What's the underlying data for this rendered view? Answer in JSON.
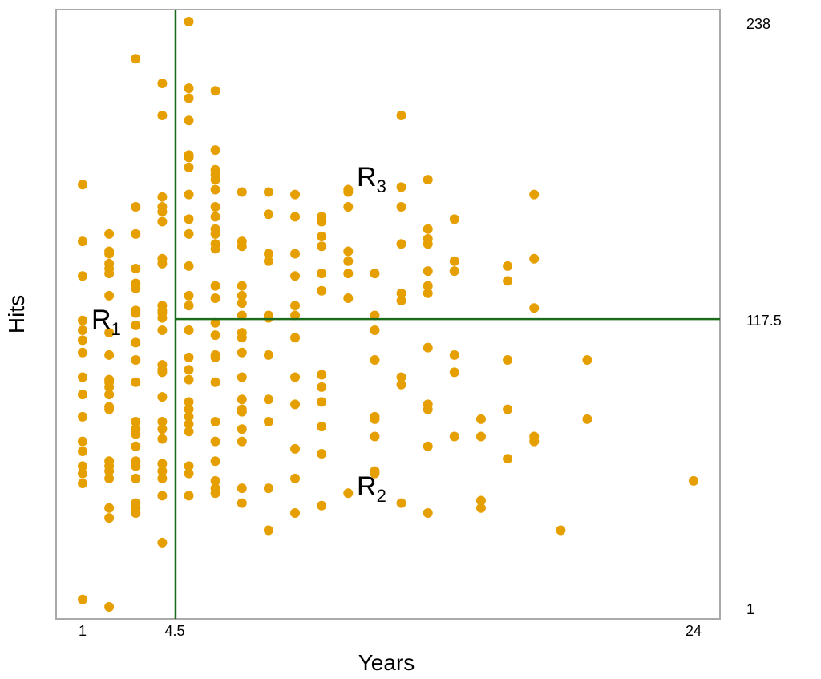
{
  "chart_data": {
    "type": "scatter",
    "xlabel": "Years",
    "ylabel": "Hits",
    "xlim": [
      1,
      24
    ],
    "ylim": [
      1,
      238
    ],
    "x_ticks": [
      "1",
      "4.5",
      "24"
    ],
    "y_ticks": [
      "238",
      "117.5",
      "1"
    ],
    "grid": false,
    "legend": "none",
    "point_color": "#E69F00",
    "split_line_color": "#1A6B1A",
    "splits": {
      "years": 4.5,
      "hits": 117.5
    },
    "regions": [
      {
        "label": "R",
        "sub": "1"
      },
      {
        "label": "R",
        "sub": "2"
      },
      {
        "label": "R",
        "sub": "3"
      }
    ],
    "points_by_year": [
      {
        "years": 1,
        "hits": [
          172,
          149,
          135,
          117,
          113,
          109,
          104,
          94,
          87,
          78,
          68,
          64,
          58,
          55,
          51,
          4
        ]
      },
      {
        "years": 2,
        "hits": [
          152,
          145,
          144,
          140,
          138,
          136,
          127,
          112,
          103,
          93,
          92,
          90,
          87,
          82,
          81,
          60,
          58,
          56,
          53,
          41,
          37,
          1
        ]
      },
      {
        "years": 3,
        "hits": [
          223,
          163,
          152,
          138,
          132,
          130,
          121,
          120,
          115,
          108,
          101,
          92,
          76,
          73,
          71,
          66,
          60,
          58,
          53,
          43,
          41,
          39
        ]
      },
      {
        "years": 4,
        "hits": [
          213,
          200,
          167,
          163,
          161,
          157,
          142,
          140,
          123,
          121,
          120,
          118,
          113,
          99,
          97,
          96,
          86,
          76,
          73,
          69,
          59,
          56,
          53,
          46,
          27
        ]
      },
      {
        "years": 5,
        "hits": [
          238,
          211,
          207,
          198,
          184,
          183,
          179,
          168,
          158,
          152,
          139,
          127,
          123,
          113,
          102,
          97,
          93,
          84,
          81,
          78,
          75,
          72,
          58,
          55,
          46
        ]
      },
      {
        "years": 6,
        "hits": [
          210,
          186,
          178,
          176,
          174,
          170,
          163,
          159,
          154,
          152,
          148,
          146,
          131,
          126,
          116,
          111,
          103,
          102,
          92,
          76,
          68,
          60,
          52,
          49,
          47
        ]
      },
      {
        "years": 7,
        "hits": [
          169,
          149,
          147,
          131,
          127,
          124,
          119,
          112,
          110,
          104,
          94,
          85,
          81,
          80,
          73,
          68,
          49,
          43
        ]
      },
      {
        "years": 8,
        "hits": [
          169,
          160,
          144,
          141,
          119,
          118,
          103,
          85,
          76,
          49,
          32
        ]
      },
      {
        "years": 9,
        "hits": [
          168,
          159,
          144,
          135,
          123,
          119,
          110,
          94,
          83,
          65,
          53,
          39
        ]
      },
      {
        "years": 10,
        "hits": [
          159,
          157,
          151,
          147,
          136,
          129,
          95,
          90,
          84,
          74,
          63,
          42
        ]
      },
      {
        "years": 11,
        "hits": [
          170,
          169,
          163,
          145,
          141,
          136,
          126,
          47
        ]
      },
      {
        "years": 12,
        "hits": [
          136,
          119,
          113,
          101,
          78,
          77,
          70,
          56,
          55
        ]
      },
      {
        "years": 13,
        "hits": [
          200,
          171,
          163,
          148,
          128,
          125,
          94,
          91,
          43
        ]
      },
      {
        "years": 14,
        "hits": [
          174,
          154,
          150,
          148,
          137,
          131,
          128,
          106,
          83,
          81,
          66,
          39
        ]
      },
      {
        "years": 15,
        "hits": [
          158,
          141,
          137,
          103,
          96,
          70
        ]
      },
      {
        "years": 16,
        "hits": [
          77,
          70,
          44,
          41
        ]
      },
      {
        "years": 17,
        "hits": [
          139,
          133,
          101,
          81,
          61
        ]
      },
      {
        "years": 18,
        "hits": [
          168,
          142,
          122,
          70,
          68
        ]
      },
      {
        "years": 19,
        "hits": [
          32
        ]
      },
      {
        "years": 20,
        "hits": [
          101,
          77
        ]
      },
      {
        "years": 24,
        "hits": [
          52
        ]
      }
    ]
  }
}
